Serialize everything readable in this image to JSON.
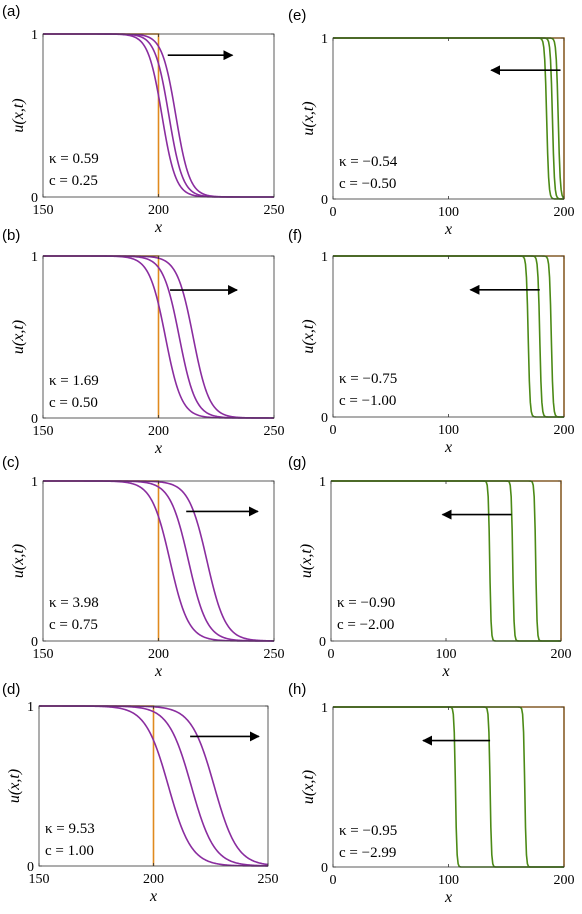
{
  "chart_data": [
    {
      "id": "a",
      "panel_label": "(a)",
      "type": "line",
      "xlabel": "x",
      "ylabel": "u(x,t)",
      "xlim": [
        150,
        250
      ],
      "ylim": [
        0,
        1
      ],
      "xticks": [
        150,
        200,
        250
      ],
      "yticks": [
        0,
        1
      ],
      "xtick_labels": [
        "150",
        "200",
        "250"
      ],
      "ytick_labels": [
        "0",
        "1"
      ],
      "direction": "right",
      "annotations": {
        "kappa": "κ = 0.59",
        "c": "c = 0.25"
      },
      "initial": {
        "color": "#e08a1e",
        "front_x": 200
      },
      "series": [
        {
          "color": "#8a2d9f",
          "front_x": 201.5,
          "width": 3
        },
        {
          "color": "#8a2d9f",
          "front_x": 204.5,
          "width": 3
        },
        {
          "color": "#8a2d9f",
          "front_x": 207.5,
          "width": 3
        }
      ],
      "arrow": {
        "x_start": 204,
        "x_end": 232,
        "y": 0.87
      }
    },
    {
      "id": "b",
      "panel_label": "(b)",
      "type": "line",
      "xlabel": "x",
      "ylabel": "u(x,t)",
      "xlim": [
        150,
        250
      ],
      "ylim": [
        0,
        1
      ],
      "xticks": [
        150,
        200,
        250
      ],
      "yticks": [
        0,
        1
      ],
      "xtick_labels": [
        "150",
        "200",
        "250"
      ],
      "ytick_labels": [
        "0",
        "1"
      ],
      "direction": "right",
      "annotations": {
        "kappa": "κ = 1.69",
        "c": "c = 0.50"
      },
      "initial": {
        "color": "#e08a1e",
        "front_x": 200
      },
      "series": [
        {
          "color": "#8a2d9f",
          "front_x": 203,
          "width": 3.5
        },
        {
          "color": "#8a2d9f",
          "front_x": 209,
          "width": 3.5
        },
        {
          "color": "#8a2d9f",
          "front_x": 215,
          "width": 3.5
        }
      ],
      "arrow": {
        "x_start": 205,
        "x_end": 234,
        "y": 0.79
      }
    },
    {
      "id": "c",
      "panel_label": "(c)",
      "type": "line",
      "xlabel": "x",
      "ylabel": "u(x,t)",
      "xlim": [
        150,
        250
      ],
      "ylim": [
        0,
        1
      ],
      "xticks": [
        150,
        200,
        250
      ],
      "yticks": [
        0,
        1
      ],
      "xtick_labels": [
        "150",
        "200",
        "250"
      ],
      "ytick_labels": [
        "0",
        "1"
      ],
      "direction": "right",
      "annotations": {
        "kappa": "κ = 3.98",
        "c": "c = 0.75"
      },
      "initial": {
        "color": "#e08a1e",
        "front_x": 200
      },
      "series": [
        {
          "color": "#8a2d9f",
          "front_x": 205,
          "width": 4
        },
        {
          "color": "#8a2d9f",
          "front_x": 213,
          "width": 4
        },
        {
          "color": "#8a2d9f",
          "front_x": 221,
          "width": 4
        }
      ],
      "arrow": {
        "x_start": 212,
        "x_end": 243,
        "y": 0.81
      }
    },
    {
      "id": "d",
      "panel_label": "(d)",
      "type": "line",
      "xlabel": "x",
      "ylabel": "u(x,t)",
      "xlim": [
        150,
        250
      ],
      "ylim": [
        0,
        1
      ],
      "xticks": [
        150,
        200,
        250
      ],
      "yticks": [
        0,
        1
      ],
      "xtick_labels": [
        "150",
        "200",
        "250"
      ],
      "ytick_labels": [
        "0",
        "1"
      ],
      "direction": "right",
      "annotations": {
        "kappa": "κ = 9.53",
        "c": "c = 1.00"
      },
      "initial": {
        "color": "#e08a1e",
        "front_x": 200
      },
      "series": [
        {
          "color": "#8a2d9f",
          "front_x": 206.5,
          "width": 5
        },
        {
          "color": "#8a2d9f",
          "front_x": 216.5,
          "width": 5
        },
        {
          "color": "#8a2d9f",
          "front_x": 226.5,
          "width": 5
        }
      ],
      "arrow": {
        "x_start": 216,
        "x_end": 246,
        "y": 0.81
      }
    },
    {
      "id": "e",
      "panel_label": "(e)",
      "type": "line",
      "xlabel": "x",
      "ylabel": "u(x,t)",
      "xlim": [
        0,
        200
      ],
      "ylim": [
        0,
        1
      ],
      "xticks": [
        0,
        100,
        200
      ],
      "yticks": [
        0,
        1
      ],
      "xtick_labels": [
        "0",
        "100",
        "200"
      ],
      "ytick_labels": [
        "0",
        "1"
      ],
      "direction": "left",
      "annotations": {
        "kappa": "κ = −0.54",
        "c": "c = −0.50"
      },
      "initial": {
        "color": "#e08a1e",
        "front_x": 200
      },
      "series": [
        {
          "color": "#4c8a16",
          "front_x": 195,
          "width": 0.9
        },
        {
          "color": "#4c8a16",
          "front_x": 190,
          "width": 0.9
        },
        {
          "color": "#4c8a16",
          "front_x": 185,
          "width": 0.9
        }
      ],
      "arrow": {
        "x_start": 197,
        "x_end": 137,
        "y": 0.8
      }
    },
    {
      "id": "f",
      "panel_label": "(f)",
      "type": "line",
      "xlabel": "x",
      "ylabel": "u(x,t)",
      "xlim": [
        0,
        200
      ],
      "ylim": [
        0,
        1
      ],
      "xticks": [
        0,
        100,
        200
      ],
      "yticks": [
        0,
        1
      ],
      "xtick_labels": [
        "0",
        "100",
        "200"
      ],
      "ytick_labels": [
        "0",
        "1"
      ],
      "direction": "left",
      "annotations": {
        "kappa": "κ = −0.75",
        "c": "c = −1.00"
      },
      "initial": {
        "color": "#e08a1e",
        "front_x": 200
      },
      "series": [
        {
          "color": "#4c8a16",
          "front_x": 189,
          "width": 0.8
        },
        {
          "color": "#4c8a16",
          "front_x": 179,
          "width": 0.8
        },
        {
          "color": "#4c8a16",
          "front_x": 169,
          "width": 0.8
        }
      ],
      "arrow": {
        "x_start": 179,
        "x_end": 119,
        "y": 0.79
      }
    },
    {
      "id": "g",
      "panel_label": "(g)",
      "type": "line",
      "xlabel": "x",
      "ylabel": "u(x,t)",
      "xlim": [
        0,
        200
      ],
      "ylim": [
        0,
        1
      ],
      "xticks": [
        0,
        100,
        200
      ],
      "yticks": [
        0,
        1
      ],
      "xtick_labels": [
        "0",
        "100",
        "200"
      ],
      "ytick_labels": [
        "0",
        "1"
      ],
      "direction": "left",
      "annotations": {
        "kappa": "κ = −0.90",
        "c": "c = −2.00"
      },
      "initial": {
        "color": "#e08a1e",
        "front_x": 200
      },
      "series": [
        {
          "color": "#4c8a16",
          "front_x": 178,
          "width": 0.6
        },
        {
          "color": "#4c8a16",
          "front_x": 158,
          "width": 0.6
        },
        {
          "color": "#4c8a16",
          "front_x": 138,
          "width": 0.6
        }
      ],
      "arrow": {
        "x_start": 157,
        "x_end": 97,
        "y": 0.79
      }
    },
    {
      "id": "h",
      "panel_label": "(h)",
      "type": "line",
      "xlabel": "x",
      "ylabel": "u(x,t)",
      "xlim": [
        0,
        200
      ],
      "ylim": [
        0,
        1
      ],
      "xticks": [
        0,
        100,
        200
      ],
      "yticks": [
        0,
        1
      ],
      "xtick_labels": [
        "0",
        "100",
        "200"
      ],
      "ytick_labels": [
        "0",
        "1"
      ],
      "direction": "left",
      "annotations": {
        "kappa": "κ = −0.95",
        "c": "c = −2.99"
      },
      "initial": {
        "color": "#e08a1e",
        "front_x": 200
      },
      "series": [
        {
          "color": "#4c8a16",
          "front_x": 166,
          "width": 0.6
        },
        {
          "color": "#4c8a16",
          "front_x": 136,
          "width": 0.6
        },
        {
          "color": "#4c8a16",
          "front_x": 106,
          "width": 0.6
        }
      ],
      "arrow": {
        "x_start": 136,
        "x_end": 78,
        "y": 0.79
      }
    }
  ]
}
